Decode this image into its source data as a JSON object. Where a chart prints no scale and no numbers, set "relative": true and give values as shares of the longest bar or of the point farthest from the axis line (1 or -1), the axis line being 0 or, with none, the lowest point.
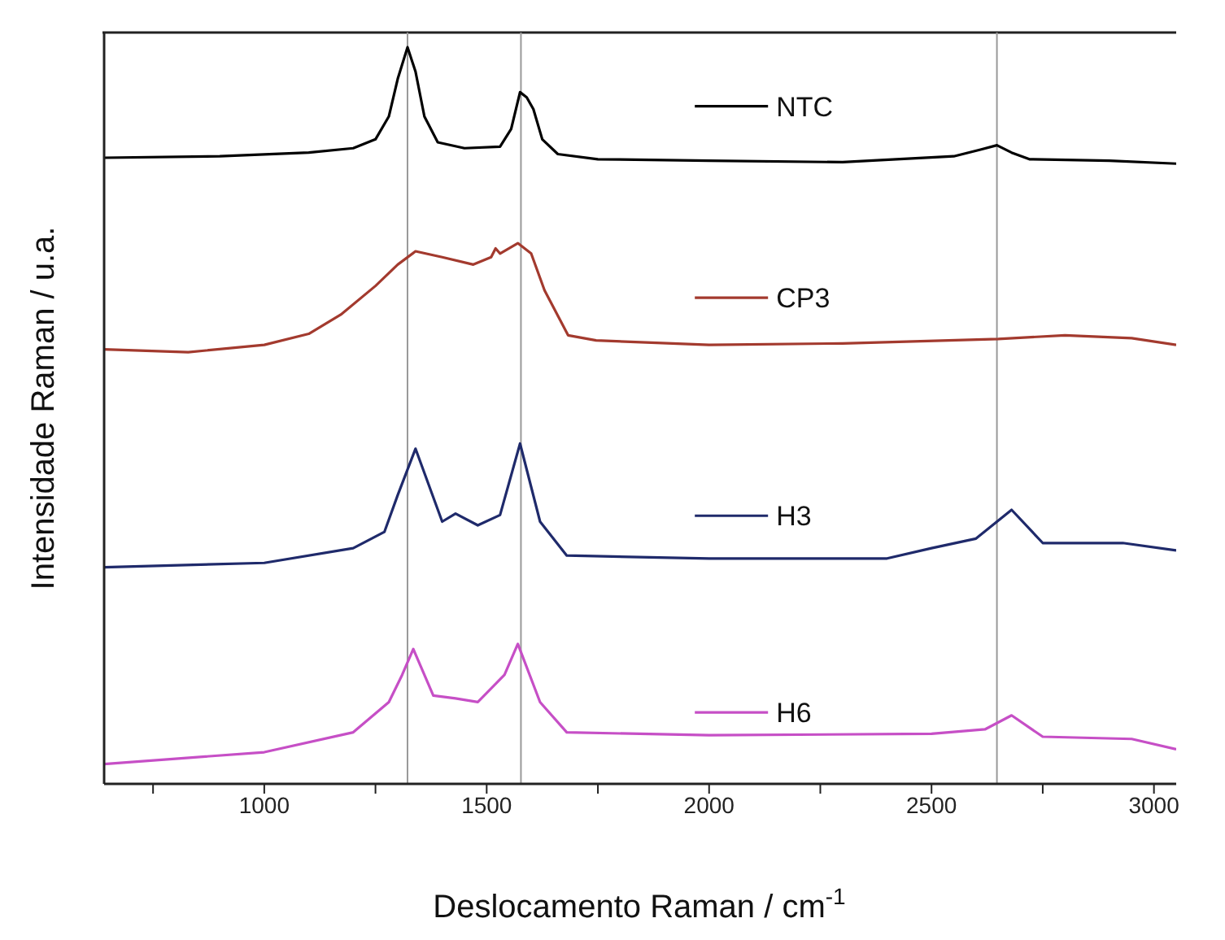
{
  "chart_data": {
    "type": "line",
    "relative": true,
    "xlabel": "Deslocamento Raman / cm$^{-1}$",
    "ylabel": "Intensidade Raman / u.a.",
    "xlim": [
      640,
      3050
    ],
    "xticks": [
      {
        "value": 750,
        "label": null
      },
      1000,
      {
        "value": 1250,
        "label": null
      },
      1500,
      {
        "value": 1750,
        "label": null
      },
      2000,
      {
        "value": 2250,
        "label": null
      },
      2500,
      {
        "value": 2750,
        "label": null
      },
      3000
    ],
    "grid": false,
    "legend": "center",
    "marker": "none",
    "line_style": "solid",
    "ref_lines": [
      {
        "axis": "x",
        "value": 1322,
        "color": "#999999"
      },
      {
        "axis": "x",
        "value": 1577,
        "color": "#999999"
      },
      {
        "axis": "x",
        "value": 2647,
        "color": "#999999"
      }
    ],
    "series": [
      {
        "name": "NTC",
        "color": "#000000",
        "x": [
          640,
          900,
          1100,
          1200,
          1250,
          1280,
          1300,
          1322,
          1340,
          1360,
          1390,
          1450,
          1530,
          1555,
          1575,
          1590,
          1605,
          1625,
          1660,
          1750,
          2000,
          2300,
          2550,
          2610,
          2647,
          2680,
          2720,
          2900,
          3050
        ],
        "values": [
          0.85,
          0.852,
          0.857,
          0.863,
          0.875,
          0.906,
          0.957,
          1.0,
          0.967,
          0.906,
          0.871,
          0.863,
          0.865,
          0.889,
          0.939,
          0.932,
          0.916,
          0.875,
          0.855,
          0.848,
          0.846,
          0.844,
          0.852,
          0.861,
          0.867,
          0.857,
          0.848,
          0.846,
          0.842
        ]
      },
      {
        "name": "CP3",
        "color": "#a33a2e",
        "x": [
          640,
          829,
          1000,
          1100,
          1172,
          1250,
          1300,
          1340,
          1400,
          1470,
          1510,
          1520,
          1530,
          1570,
          1600,
          1630,
          1683,
          1746,
          2000,
          2300,
          2650,
          2800,
          2950,
          3050
        ],
        "values": [
          0.59,
          0.586,
          0.596,
          0.611,
          0.637,
          0.676,
          0.705,
          0.723,
          0.715,
          0.705,
          0.715,
          0.727,
          0.72,
          0.734,
          0.72,
          0.67,
          0.609,
          0.602,
          0.596,
          0.598,
          0.604,
          0.609,
          0.605,
          0.596
        ]
      },
      {
        "name": "H3",
        "color": "#1f2a6b",
        "x": [
          640,
          1000,
          1200,
          1270,
          1300,
          1340,
          1400,
          1430,
          1480,
          1530,
          1575,
          1620,
          1680,
          2000,
          2400,
          2500,
          2600,
          2680,
          2750,
          2930,
          3050
        ],
        "values": [
          0.294,
          0.3,
          0.32,
          0.342,
          0.392,
          0.455,
          0.356,
          0.367,
          0.351,
          0.365,
          0.462,
          0.356,
          0.31,
          0.306,
          0.306,
          0.32,
          0.333,
          0.372,
          0.327,
          0.327,
          0.317
        ]
      },
      {
        "name": "H6",
        "color": "#c64fc6",
        "x": [
          640,
          1000,
          1200,
          1280,
          1310,
          1335,
          1380,
          1430,
          1480,
          1540,
          1570,
          1620,
          1680,
          2000,
          2500,
          2620,
          2680,
          2750,
          2950,
          3050
        ],
        "values": [
          0.027,
          0.043,
          0.07,
          0.111,
          0.148,
          0.183,
          0.12,
          0.116,
          0.111,
          0.148,
          0.19,
          0.111,
          0.07,
          0.066,
          0.068,
          0.074,
          0.093,
          0.064,
          0.061,
          0.047
        ]
      }
    ]
  }
}
